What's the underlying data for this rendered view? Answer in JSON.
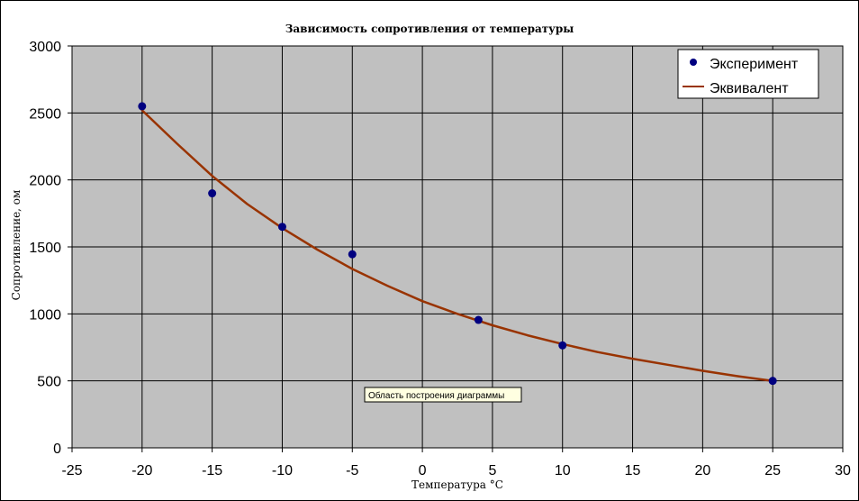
{
  "colors": {
    "plot_background": "#c0c0c0",
    "grid": "#000000",
    "marker": "#000080",
    "curve": "#993300",
    "tooltip_background": "#ffffe1"
  },
  "tooltip": {
    "text": "Область построения диаграммы"
  },
  "chart_data": {
    "type": "scatter",
    "title": "Зависимость сопротивления от температуры",
    "xlabel": "Температура °С",
    "ylabel": "Сопротивление, ом",
    "xlim": [
      -25,
      30
    ],
    "ylim": [
      0,
      3000
    ],
    "x_ticks": [
      -25,
      -20,
      -15,
      -10,
      -5,
      0,
      5,
      10,
      15,
      20,
      25,
      30
    ],
    "y_ticks": [
      0,
      500,
      1000,
      1500,
      2000,
      2500,
      3000
    ],
    "x_tick_labels": [
      "-25",
      "-20",
      "-15",
      "-10",
      "-5",
      "0",
      "5",
      "10",
      "15",
      "20",
      "25",
      "30"
    ],
    "y_tick_labels": [
      "0",
      "500",
      "1000",
      "1500",
      "2000",
      "2500",
      "3000"
    ],
    "grid": true,
    "legend_position": "top-right",
    "series": [
      {
        "name": "Эксперимент",
        "kind": "markers",
        "color": "#000080",
        "x": [
          -20,
          -15,
          -10,
          -5,
          4,
          10,
          25
        ],
        "y": [
          2550,
          1900,
          1650,
          1445,
          955,
          765,
          500
        ]
      },
      {
        "name": "Эквивалент",
        "kind": "line",
        "color": "#993300",
        "x": [
          -20,
          -17.5,
          -15,
          -12.5,
          -10,
          -7.5,
          -5,
          -2.5,
          0,
          2.5,
          5,
          7.5,
          10,
          12.5,
          15,
          17.5,
          20,
          22.5,
          25
        ],
        "y": [
          2520,
          2270,
          2030,
          1820,
          1640,
          1480,
          1335,
          1210,
          1095,
          1000,
          915,
          840,
          775,
          715,
          665,
          620,
          575,
          535,
          500
        ]
      }
    ]
  }
}
